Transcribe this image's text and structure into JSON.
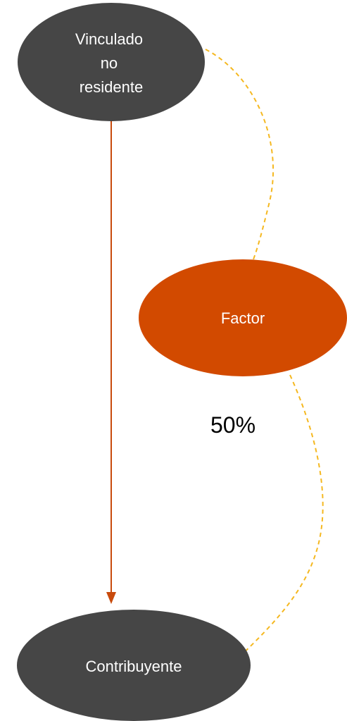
{
  "colors": {
    "node_dark": "#464646",
    "node_accent": "#d24a00",
    "arrow": "#c84a0c",
    "dashed_link": "#f5b820",
    "background": "#ffffff"
  },
  "nodes": {
    "vinculado": {
      "lines": [
        "Vinculado",
        "no",
        "residente"
      ]
    },
    "factor": {
      "label": "Factor"
    },
    "contribuyente": {
      "label": "Contribuyente"
    }
  },
  "percentage": {
    "label": "50%"
  }
}
